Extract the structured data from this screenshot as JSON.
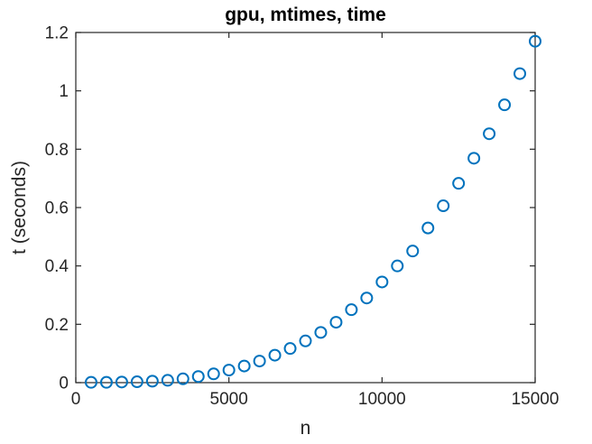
{
  "chart_data": {
    "type": "scatter",
    "title": "gpu, mtimes, time",
    "xlabel": "n",
    "ylabel": "t (seconds)",
    "xlim": [
      0,
      15000
    ],
    "ylim": [
      0,
      1.2
    ],
    "xticks": [
      0,
      5000,
      10000,
      15000
    ],
    "xtick_labels": [
      "0",
      "5000",
      "10000",
      "15000"
    ],
    "yticks": [
      0,
      0.2,
      0.4,
      0.6,
      0.8,
      1,
      1.2
    ],
    "ytick_labels": [
      "0",
      "0.2",
      "0.4",
      "0.6",
      "0.8",
      "1",
      "1.2"
    ],
    "grid": false,
    "legend_position": "none",
    "marker": {
      "shape": "open-circle",
      "color": "#0072BD",
      "fill": "none"
    },
    "axis_color": "#262626",
    "background_color": "#ffffff",
    "series": [
      {
        "x": [
          500,
          1000,
          1500,
          2000,
          2500,
          3000,
          3500,
          4000,
          4500,
          5000,
          5500,
          6000,
          6500,
          7000,
          7500,
          8000,
          8500,
          9000,
          9500,
          10000,
          10500,
          11000,
          11500,
          12000,
          12500,
          13000,
          13500,
          14000,
          14500,
          15000
        ],
        "y": [
          0.001,
          0.001,
          0.002,
          0.003,
          0.005,
          0.008,
          0.013,
          0.021,
          0.03,
          0.043,
          0.057,
          0.074,
          0.094,
          0.117,
          0.143,
          0.172,
          0.207,
          0.25,
          0.29,
          0.345,
          0.4,
          0.451,
          0.53,
          0.606,
          0.683,
          0.769,
          0.853,
          0.952,
          1.059,
          1.17
        ]
      }
    ]
  }
}
